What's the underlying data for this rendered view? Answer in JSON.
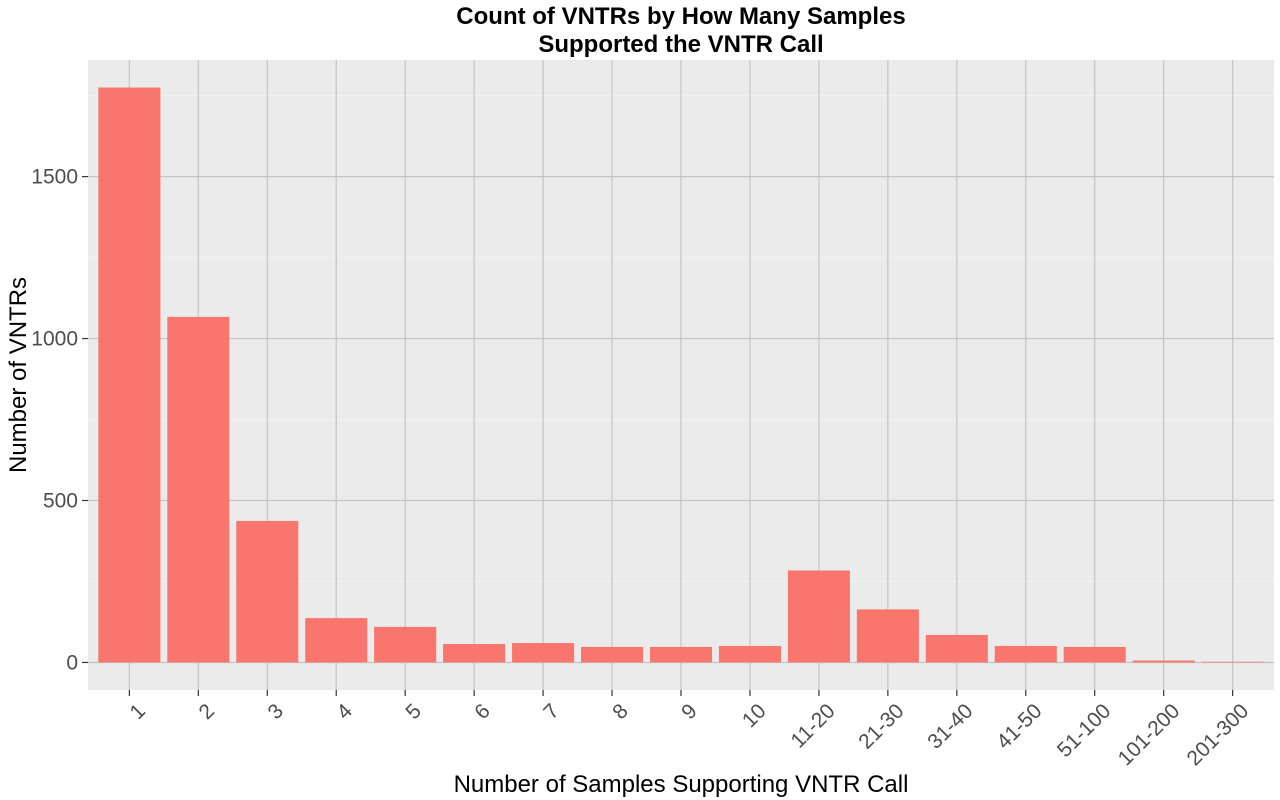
{
  "chart_data": {
    "type": "bar",
    "title": [
      "Count of VNTRs by How Many Samples",
      "Supported the VNTR Call"
    ],
    "xlabel": "Number of Samples Supporting VNTR Call",
    "ylabel": "Number of VNTRs",
    "categories": [
      "1",
      "2",
      "3",
      "4",
      "5",
      "6",
      "7",
      "8",
      "9",
      "10",
      "11-20",
      "21-30",
      "31-40",
      "41-50",
      "51-100",
      "101-200",
      "201-300"
    ],
    "values": [
      1775,
      1067,
      437,
      137,
      110,
      57,
      60,
      48,
      48,
      51,
      284,
      164,
      85,
      51,
      48,
      6,
      2
    ],
    "ylim": [
      -85,
      1860
    ],
    "yticks": [
      0,
      500,
      1000,
      1500
    ],
    "ytick_labels": [
      "0",
      "500",
      "1000",
      "1500"
    ],
    "grid": true,
    "colors": {
      "bar": "#F8766D",
      "panel": "#EBEBEB",
      "grid": "#C4C4C4",
      "grid_minor": "#F2F2F2"
    }
  }
}
